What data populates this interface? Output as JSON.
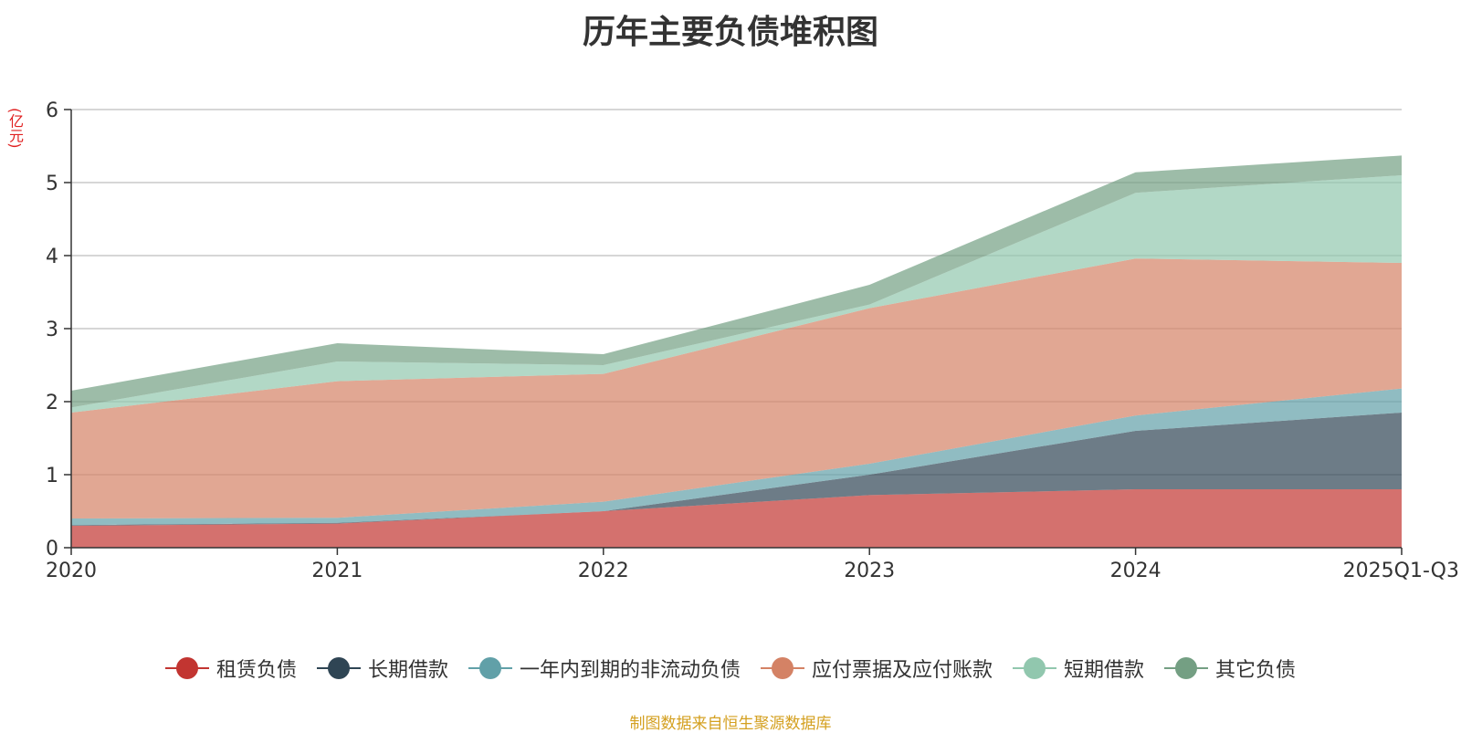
{
  "chart_data": {
    "type": "area",
    "stacked": true,
    "title": "历年主要负债堆积图",
    "unit_label": "(亿元)",
    "categories": [
      "2020",
      "2021",
      "2022",
      "2023",
      "2024",
      "2025Q1-Q3"
    ],
    "ylim": [
      0,
      6
    ],
    "yticks": [
      "0",
      "1",
      "2",
      "3",
      "4",
      "5",
      "6"
    ],
    "grid": true,
    "legend_position": "bottom",
    "series": [
      {
        "name": "租赁负债",
        "color": "#c23531",
        "values": [
          0.3,
          0.33,
          0.5,
          0.72,
          0.8,
          0.8
        ]
      },
      {
        "name": "长期借款",
        "color": "#2f4554",
        "values": [
          0.01,
          0.01,
          0.0,
          0.28,
          0.8,
          1.05
        ]
      },
      {
        "name": "一年内到期的非流动负债",
        "color": "#61a0a8",
        "values": [
          0.09,
          0.07,
          0.13,
          0.15,
          0.21,
          0.33
        ]
      },
      {
        "name": "应付票据及应付账款",
        "color": "#d48265",
        "values": [
          1.45,
          1.87,
          1.75,
          2.13,
          2.15,
          1.72
        ]
      },
      {
        "name": "短期借款",
        "color": "#91c7ae",
        "values": [
          0.07,
          0.27,
          0.12,
          0.05,
          0.9,
          1.2
        ]
      },
      {
        "name": "其它负债",
        "color": "#749f83",
        "values": [
          0.23,
          0.25,
          0.15,
          0.27,
          0.28,
          0.27
        ]
      }
    ],
    "source": "制图数据来自恒生聚源数据库"
  }
}
